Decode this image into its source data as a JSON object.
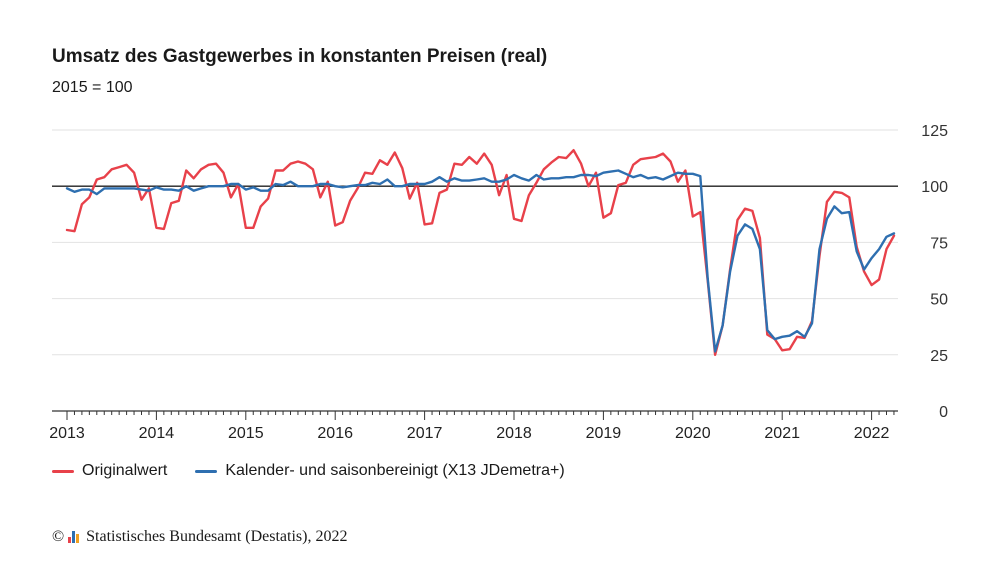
{
  "chart_data": {
    "type": "line",
    "title": "Umsatz des Gastgewerbes in konstanten Preisen (real)",
    "subtitle": "2015 = 100",
    "xlabel": "",
    "ylabel": "",
    "ylim": [
      0,
      125
    ],
    "y_ticks": [
      0,
      25,
      50,
      75,
      100,
      125
    ],
    "x_ticks": [
      "2013",
      "2014",
      "2015",
      "2016",
      "2017",
      "2018",
      "2019",
      "2020",
      "2021",
      "2022"
    ],
    "reference_line": 100,
    "grid": "horizontal",
    "legend_position": "bottom-left",
    "start": "2013-01",
    "series": [
      {
        "name": "Originalwert",
        "color": "#e8414a",
        "values": [
          80.5,
          80,
          92,
          95,
          103,
          104,
          107.5,
          108.5,
          109.5,
          106,
          94,
          99,
          81.5,
          81,
          92.5,
          93.5,
          107,
          103.5,
          107.5,
          109.5,
          110,
          106,
          95,
          101,
          81.5,
          81.5,
          91,
          94.5,
          107,
          107,
          110,
          111,
          110,
          107.5,
          95,
          102,
          82.5,
          84,
          93.5,
          99,
          106,
          105.5,
          111.5,
          109.5,
          115,
          108,
          94.5,
          101.5,
          83,
          83.5,
          97,
          98.5,
          110,
          109.5,
          113,
          110,
          114.5,
          109.5,
          96,
          105,
          85.5,
          84.5,
          96,
          101.5,
          107.5,
          110.5,
          113,
          112.5,
          116,
          110,
          100,
          106,
          86,
          88,
          100.5,
          101.5,
          109.5,
          112,
          112.5,
          113,
          114.5,
          111,
          102,
          107,
          86.5,
          88.5,
          58,
          25,
          38,
          63,
          85,
          90,
          89,
          77,
          34,
          32,
          27,
          27.5,
          33,
          32.5,
          40,
          69,
          93,
          97.5,
          97,
          95,
          73,
          62,
          56,
          58.5,
          72,
          78
        ]
      },
      {
        "name": "Kalender- und saisonbereinigt (X13 JDemetra+)",
        "color": "#2e6fb0",
        "values": [
          99,
          97.5,
          98.5,
          98.5,
          96.5,
          99,
          99,
          99,
          99,
          99,
          98.5,
          98,
          99.5,
          98.5,
          98.5,
          98,
          100,
          98,
          99,
          100,
          100,
          100,
          101,
          101,
          98.5,
          99.5,
          98,
          98,
          101,
          100.5,
          102,
          100,
          100,
          100,
          101,
          101,
          100,
          99.5,
          100,
          100.5,
          100.5,
          101.5,
          101,
          103,
          100,
          100,
          101,
          101,
          101,
          102,
          104,
          102,
          103.5,
          102.5,
          102.5,
          103,
          103.5,
          102,
          102,
          103,
          105,
          103.5,
          102.5,
          105,
          103,
          103.5,
          103.5,
          104,
          104,
          105,
          105,
          104.5,
          106,
          106.5,
          107,
          105.5,
          104,
          105,
          103.5,
          104,
          103,
          104.5,
          106,
          105.5,
          105.5,
          104.5,
          59,
          26.5,
          38,
          62,
          78,
          83,
          81,
          72,
          36,
          32,
          33,
          33.5,
          35.5,
          33,
          39,
          72,
          85.5,
          91,
          88,
          88.5,
          71,
          63,
          68,
          72,
          77.5,
          79
        ]
      }
    ],
    "source": "Statistisches Bundesamt (Destatis), 2022",
    "copyright_symbol": "©"
  }
}
